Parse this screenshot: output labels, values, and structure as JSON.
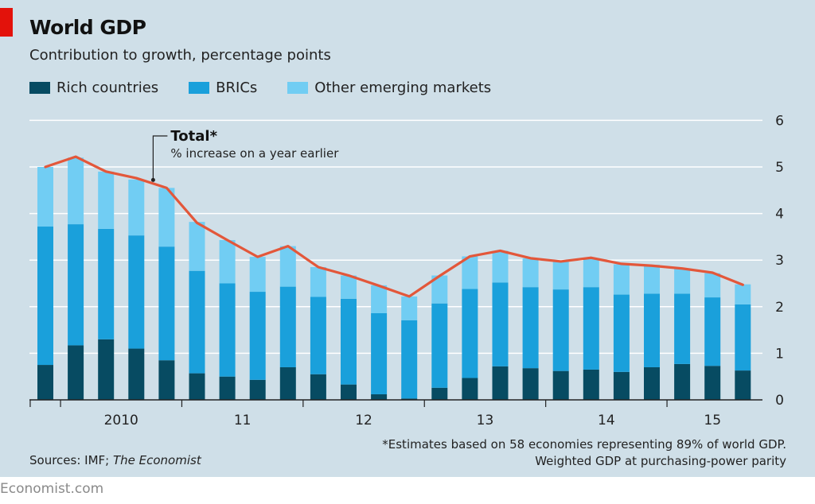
{
  "header": {
    "title": "World GDP",
    "subtitle": "Contribution to growth, percentage points"
  },
  "colors": {
    "background": "#cfdfe8",
    "rich": "#074b62",
    "brics": "#1aa0db",
    "other": "#71cdf3",
    "total_line": "#e3573a",
    "gridline": "#ffffff",
    "brand_tag": "#e3120b"
  },
  "legend": [
    {
      "label": "Rich countries",
      "color": "#074b62"
    },
    {
      "label": "BRICs",
      "color": "#1aa0db"
    },
    {
      "label": "Other emerging markets",
      "color": "#71cdf3"
    }
  ],
  "annotation": {
    "title": "Total*",
    "text": "% increase on a year earlier"
  },
  "footer": {
    "sources_prefix": "Sources: IMF; ",
    "sources_italic": "The Economist",
    "note_line1": "*Estimates based on 58 economies representing 89% of world GDP.",
    "note_line2": "Weighted GDP at purchasing-power parity",
    "brand": "Economist.com"
  },
  "chart_data": {
    "type": "bar",
    "stacked": true,
    "x_tick_labels": [
      "2010",
      "11",
      "12",
      "13",
      "14",
      "15"
    ],
    "y_tick_labels": [
      "0",
      "1",
      "2",
      "3",
      "4",
      "5",
      "6"
    ],
    "ylim": [
      0,
      6
    ],
    "y_axis_side": "right",
    "grid": true,
    "legend_position": "top-left",
    "categories": [
      "2009 Q4",
      "2010 Q1",
      "2010 Q2",
      "2010 Q3",
      "2010 Q4",
      "2011 Q1",
      "2011 Q2",
      "2011 Q3",
      "2011 Q4",
      "2012 Q1",
      "2012 Q2",
      "2012 Q3",
      "2012 Q4",
      "2013 Q1",
      "2013 Q2",
      "2013 Q3",
      "2013 Q4",
      "2014 Q1",
      "2014 Q2",
      "2014 Q3",
      "2014 Q4",
      "2015 Q1",
      "2015 Q2",
      "2015 Q3"
    ],
    "series": [
      {
        "name": "Rich countries",
        "values": [
          0.75,
          1.17,
          1.3,
          1.1,
          0.85,
          0.57,
          0.5,
          0.43,
          0.7,
          0.55,
          0.33,
          0.12,
          0.03,
          0.26,
          0.47,
          0.72,
          0.68,
          0.62,
          0.65,
          0.6,
          0.7,
          0.77,
          0.73,
          0.63
        ]
      },
      {
        "name": "BRICs",
        "values": [
          2.97,
          2.6,
          2.37,
          2.43,
          2.44,
          2.2,
          2.0,
          1.89,
          1.73,
          1.66,
          1.84,
          1.74,
          1.68,
          1.81,
          1.91,
          1.8,
          1.74,
          1.75,
          1.77,
          1.66,
          1.58,
          1.51,
          1.47,
          1.42
        ]
      },
      {
        "name": "Other emerging markets",
        "values": [
          1.28,
          1.43,
          1.23,
          1.2,
          1.26,
          1.05,
          0.93,
          0.75,
          0.87,
          0.64,
          0.5,
          0.6,
          0.51,
          0.6,
          0.7,
          0.68,
          0.62,
          0.6,
          0.62,
          0.65,
          0.62,
          0.54,
          0.52,
          0.43
        ]
      }
    ],
    "total": {
      "name": "Total*",
      "values": [
        5.0,
        5.22,
        4.9,
        4.76,
        4.55,
        3.8,
        3.43,
        3.07,
        3.3,
        2.85,
        2.67,
        2.45,
        2.22,
        2.66,
        3.08,
        3.2,
        3.04,
        2.97,
        3.05,
        2.92,
        2.88,
        2.82,
        2.73,
        2.47
      ]
    }
  }
}
